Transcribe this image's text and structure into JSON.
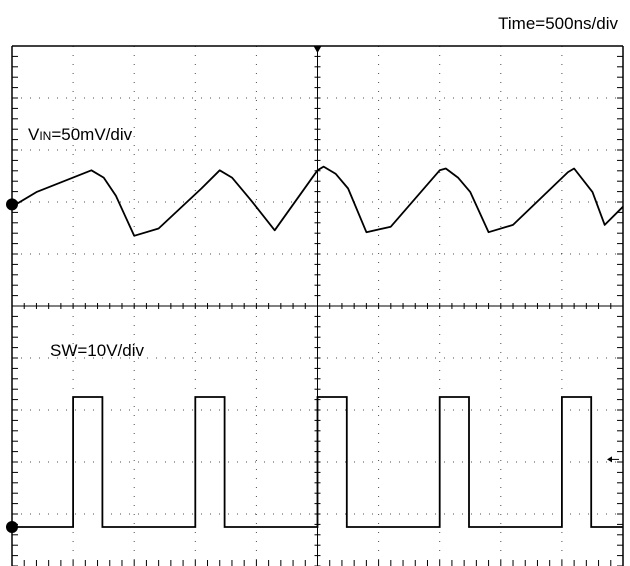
{
  "time_label": "Time=500ns/div",
  "channels": {
    "vin": {
      "label_main": "V",
      "label_sub": "IN",
      "label_rest": "=50mV/div"
    },
    "sw": {
      "label": "SW=10V/div"
    }
  },
  "colors": {
    "trace": "#000000",
    "grid": "#000000",
    "background": "#ffffff"
  },
  "chart_data": {
    "type": "line",
    "title": "",
    "xlabel": "Time=500ns/div",
    "grid": true,
    "time_per_div_ns": 500,
    "x_divisions": 10,
    "series": [
      {
        "name": "VIN=50mV/div",
        "units": "divisions relative to marker",
        "x": [
          0.0,
          0.4,
          1.3,
          1.5,
          1.7,
          2.0,
          2.4,
          3.1,
          3.4,
          3.6,
          3.9,
          4.3,
          5.0,
          5.1,
          5.3,
          5.5,
          5.8,
          6.2,
          7.0,
          7.1,
          7.3,
          7.5,
          7.8,
          8.2,
          9.1,
          9.2,
          9.5,
          9.7,
          10.0
        ],
        "y": [
          -0.2,
          0.2,
          0.8,
          0.6,
          0.1,
          -1.0,
          -0.8,
          0.3,
          0.8,
          0.6,
          0.0,
          -0.85,
          0.8,
          0.9,
          0.7,
          0.3,
          -0.9,
          -0.75,
          0.8,
          0.85,
          0.6,
          0.2,
          -0.9,
          -0.7,
          0.75,
          0.85,
          0.2,
          -0.7,
          -0.2
        ]
      },
      {
        "name": "SW=10V/div",
        "units": "divisions relative to marker",
        "low": 0.0,
        "high": 2.5,
        "pulses": [
          [
            1.0,
            1.48
          ],
          [
            3.0,
            3.48
          ],
          [
            5.0,
            5.48
          ],
          [
            7.0,
            7.48
          ],
          [
            9.0,
            9.48
          ]
        ]
      }
    ]
  }
}
